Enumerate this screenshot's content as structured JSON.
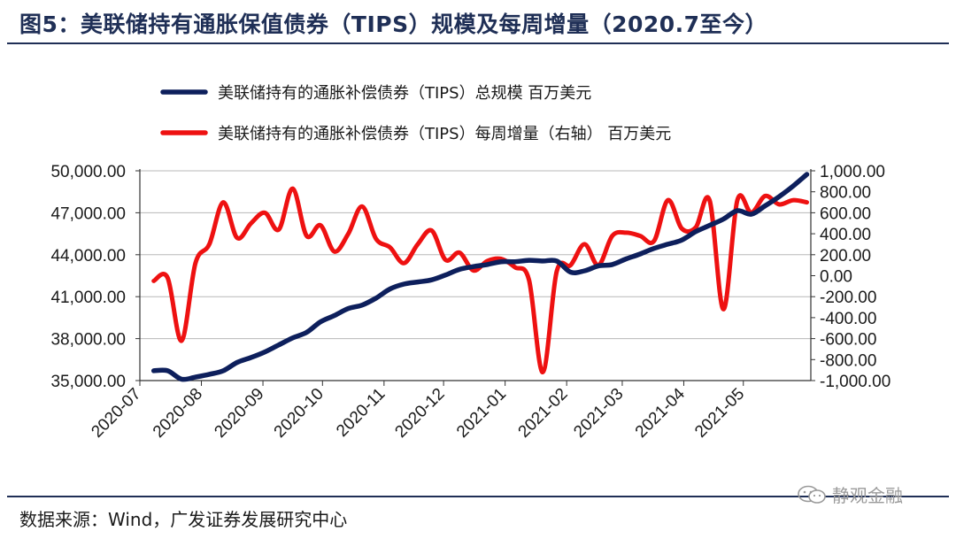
{
  "header": {
    "title": "图5：美联储持有通胀保值债券（TIPS）规模及每周增量（2020.7至今）"
  },
  "footer": {
    "source": "数据来源：Wind，广发证券发展研究中心",
    "watermark": "静观金融"
  },
  "chart_data": {
    "type": "line",
    "title": "",
    "x_tick_labels": [
      "2020-07",
      "2020-08",
      "2020-09",
      "2020-10",
      "2020-11",
      "2020-12",
      "2021-01",
      "2021-02",
      "2021-03",
      "2021-04",
      "2021-05"
    ],
    "x_dates": [
      "2020-07-08",
      "2020-07-15",
      "2020-07-22",
      "2020-07-29",
      "2020-08-05",
      "2020-08-12",
      "2020-08-19",
      "2020-08-26",
      "2020-09-02",
      "2020-09-09",
      "2020-09-16",
      "2020-09-23",
      "2020-09-30",
      "2020-10-07",
      "2020-10-14",
      "2020-10-21",
      "2020-10-28",
      "2020-11-04",
      "2020-11-11",
      "2020-11-18",
      "2020-11-25",
      "2020-12-02",
      "2020-12-09",
      "2020-12-16",
      "2020-12-23",
      "2020-12-30",
      "2021-01-06",
      "2021-01-13",
      "2021-01-20",
      "2021-01-27",
      "2021-02-03",
      "2021-02-10",
      "2021-02-17",
      "2021-02-24",
      "2021-03-03",
      "2021-03-10",
      "2021-03-17",
      "2021-03-24",
      "2021-03-31",
      "2021-04-07",
      "2021-04-14",
      "2021-04-21",
      "2021-04-28",
      "2021-05-05",
      "2021-05-12",
      "2021-05-19",
      "2021-05-26",
      "2021-06-02"
    ],
    "y_left": {
      "ylim": [
        35000,
        50000
      ],
      "ticks": [
        35000,
        38000,
        41000,
        44000,
        47000,
        50000
      ],
      "tick_labels": [
        "35,000.00",
        "38,000.00",
        "41,000.00",
        "44,000.00",
        "47,000.00",
        "50,000.00"
      ]
    },
    "y_right": {
      "ylim": [
        -1000,
        1000
      ],
      "ticks": [
        -1000,
        -800,
        -600,
        -400,
        -200,
        0,
        200,
        400,
        600,
        800,
        1000
      ],
      "tick_labels": [
        "-1,000.00",
        "-800.00",
        "-600.00",
        "-400.00",
        "-200.00",
        "0.00",
        "200.00",
        "400.00",
        "600.00",
        "800.00",
        "1,000.00"
      ]
    },
    "grid": true,
    "legend_position": "top",
    "series": [
      {
        "name": "美联储持有的通胀补偿债券（TIPS）总规模 百万美元",
        "axis": "left",
        "color": "#0d1f5c",
        "values": [
          35700,
          35700,
          35100,
          35250,
          35450,
          35700,
          36300,
          36650,
          37050,
          37550,
          38050,
          38450,
          39200,
          39650,
          40150,
          40400,
          40900,
          41550,
          41900,
          42050,
          42200,
          42550,
          42950,
          43150,
          43300,
          43500,
          43500,
          43600,
          43550,
          43550,
          42750,
          42850,
          43200,
          43300,
          43700,
          44050,
          44450,
          44750,
          45050,
          45650,
          46100,
          46550,
          47150,
          46900,
          47500,
          48150,
          48900,
          49750
        ]
      },
      {
        "name": "美联储持有的通胀补偿债券（TIPS）每周增量（右轴） 百万美元",
        "axis": "right",
        "color": "#ee1111",
        "values": [
          -50,
          -20,
          -620,
          120,
          300,
          700,
          360,
          500,
          600,
          440,
          830,
          380,
          480,
          230,
          400,
          660,
          350,
          270,
          120,
          300,
          430,
          150,
          220,
          50,
          140,
          160,
          80,
          -40,
          -920,
          40,
          100,
          300,
          100,
          380,
          410,
          380,
          330,
          720,
          450,
          460,
          720,
          -320,
          720,
          600,
          760,
          680,
          720,
          700
        ]
      }
    ]
  }
}
